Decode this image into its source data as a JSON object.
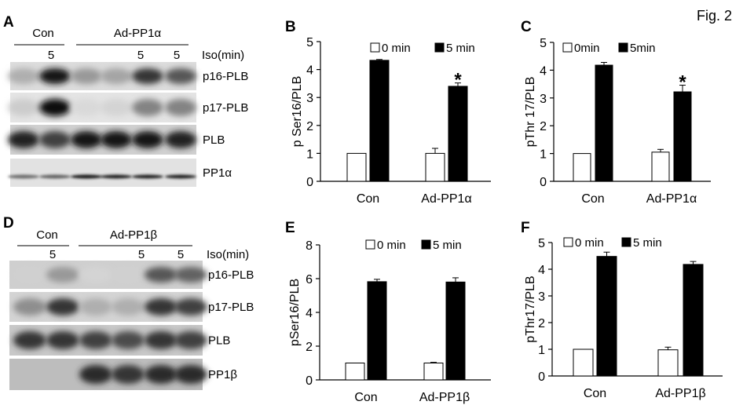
{
  "figure_label": "Fig. 2",
  "blots": [
    {
      "panel": "A",
      "group_labels": [
        "Con",
        "Ad-PP1α"
      ],
      "time_labels": [
        "5",
        "5",
        "5"
      ],
      "time_unit_label": "Iso(min)",
      "row_labels": [
        "p16-PLB",
        "p17-PLB",
        "PLB",
        "PP1α"
      ]
    },
    {
      "panel": "D",
      "group_labels": [
        "Con",
        "Ad-PP1β"
      ],
      "time_labels": [
        "5",
        "5",
        "5"
      ],
      "time_unit_label": "Iso(min)",
      "row_labels": [
        "p16-PLB",
        "p17-PLB",
        "PLB",
        "PP1β"
      ]
    }
  ],
  "colors": {
    "0_min": "#ffffff",
    "5_min": "#000000"
  },
  "chart_data": [
    {
      "panel": "B",
      "type": "bar",
      "categories": [
        "Con",
        "Ad-PP1α"
      ],
      "ylabel": "p Ser16/PLB",
      "ylim": [
        0,
        5
      ],
      "yticks": [
        0,
        1,
        2,
        3,
        4,
        5
      ],
      "legend_placement": "top",
      "series": [
        {
          "name": "0 min",
          "values": [
            1.0,
            1.0
          ],
          "errors": [
            0.0,
            0.18
          ]
        },
        {
          "name": "5 min",
          "values": [
            4.33,
            3.4
          ],
          "errors": [
            0.03,
            0.12
          ]
        }
      ],
      "annotations": [
        {
          "text": "*",
          "category": "Ad-PP1α",
          "series": "5 min"
        }
      ]
    },
    {
      "panel": "C",
      "type": "bar",
      "categories": [
        "Con",
        "Ad-PP1α"
      ],
      "ylabel": "pThr 17/PLB",
      "ylim": [
        0,
        5
      ],
      "yticks": [
        0,
        1,
        2,
        3,
        4,
        5
      ],
      "legend_placement": "top",
      "series": [
        {
          "name": "0min",
          "values": [
            1.0,
            1.05
          ],
          "errors": [
            0.0,
            0.1
          ]
        },
        {
          "name": "5min",
          "values": [
            4.18,
            3.22
          ],
          "errors": [
            0.1,
            0.24
          ]
        }
      ],
      "annotations": [
        {
          "text": "*",
          "category": "Ad-PP1α",
          "series": "5min"
        }
      ]
    },
    {
      "panel": "E",
      "type": "bar",
      "categories": [
        "Con",
        "Ad-PP1β"
      ],
      "ylabel": "pSer16/PLB",
      "ylim": [
        0,
        8
      ],
      "yticks": [
        0,
        2,
        4,
        6,
        8
      ],
      "legend_placement": "top",
      "series": [
        {
          "name": "0 min",
          "values": [
            1.0,
            1.0
          ],
          "errors": [
            0.0,
            0.04
          ]
        },
        {
          "name": "5 min",
          "values": [
            5.82,
            5.8
          ],
          "errors": [
            0.14,
            0.25
          ]
        }
      ],
      "annotations": []
    },
    {
      "panel": "F",
      "type": "bar",
      "categories": [
        "Con",
        "Ad-PP1β"
      ],
      "ylabel": "pThr17/PLB",
      "ylim": [
        0,
        5
      ],
      "yticks": [
        0,
        1,
        2,
        3,
        4,
        5
      ],
      "legend_placement": "top",
      "series": [
        {
          "name": "0 min",
          "values": [
            1.0,
            0.98
          ],
          "errors": [
            0.0,
            0.1
          ]
        },
        {
          "name": "5 min",
          "values": [
            4.48,
            4.18
          ],
          "errors": [
            0.16,
            0.11
          ]
        }
      ],
      "annotations": []
    }
  ]
}
